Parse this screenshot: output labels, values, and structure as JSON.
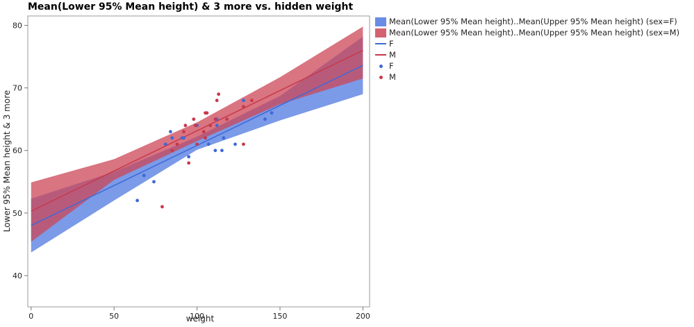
{
  "chart_data": {
    "type": "scatter",
    "title": "Mean(Lower 95% Mean height) & 3 more vs. hidden weight",
    "xlabel": "weight",
    "ylabel": "Lower 95% Mean height & 3 more",
    "xlim": [
      -2,
      204
    ],
    "ylim": [
      35,
      81.5
    ],
    "xticks": [
      0,
      50,
      100,
      150,
      200
    ],
    "yticks": [
      40,
      50,
      60,
      70,
      80
    ],
    "series": [
      {
        "name": "F",
        "color": "#3d69d6",
        "band_color": "#4f78e0",
        "fit": {
          "x": [
            0,
            200
          ],
          "y": [
            48,
            73.6
          ]
        },
        "band": {
          "x": [
            0,
            50,
            100,
            150,
            200
          ],
          "lower": [
            43.7,
            52.0,
            60.1,
            64.8,
            69.0
          ],
          "upper": [
            52.3,
            56.6,
            62.2,
            68.7,
            78.2
          ]
        },
        "points": [
          [
            64,
            52
          ],
          [
            68,
            56
          ],
          [
            74,
            55
          ],
          [
            81,
            61
          ],
          [
            84,
            63
          ],
          [
            85,
            62
          ],
          [
            91,
            62
          ],
          [
            92,
            62
          ],
          [
            95,
            59
          ],
          [
            100,
            64
          ],
          [
            105,
            62
          ],
          [
            107,
            61
          ],
          [
            111,
            60
          ],
          [
            112,
            64
          ],
          [
            112,
            65
          ],
          [
            115,
            60
          ],
          [
            116,
            62
          ],
          [
            123,
            61
          ],
          [
            128,
            68
          ],
          [
            141,
            65
          ],
          [
            145,
            66
          ]
        ]
      },
      {
        "name": "M",
        "color": "#c8384a",
        "band_color": "#cc4657",
        "fit": {
          "x": [
            0,
            200
          ],
          "y": [
            50.3,
            76
          ]
        },
        "band": {
          "x": [
            0,
            50,
            100,
            150,
            200
          ],
          "lower": [
            45.4,
            55.3,
            61.5,
            67.4,
            71.5
          ],
          "upper": [
            54.9,
            58.6,
            64.5,
            71.7,
            79.8
          ]
        },
        "points": [
          [
            79,
            51
          ],
          [
            85,
            60
          ],
          [
            88,
            61
          ],
          [
            92,
            63
          ],
          [
            93,
            64
          ],
          [
            95,
            58
          ],
          [
            98,
            65
          ],
          [
            99,
            64
          ],
          [
            100,
            61
          ],
          [
            104,
            63
          ],
          [
            105,
            66
          ],
          [
            105,
            62
          ],
          [
            106,
            66
          ],
          [
            108,
            64
          ],
          [
            111,
            65
          ],
          [
            112,
            68
          ],
          [
            113,
            69
          ],
          [
            118,
            65
          ],
          [
            128,
            67
          ],
          [
            128,
            61
          ],
          [
            133,
            68
          ]
        ]
      }
    ],
    "legend": [
      {
        "kind": "band",
        "label": "Mean(Lower 95% Mean height)..Mean(Upper 95% Mean height) (sex=F)",
        "color": "#4f78e0"
      },
      {
        "kind": "band",
        "label": "Mean(Lower 95% Mean height)..Mean(Upper 95% Mean height) (sex=M)",
        "color": "#cc4657"
      },
      {
        "kind": "line",
        "label": "F",
        "color": "#3d69d6"
      },
      {
        "kind": "line",
        "label": "M",
        "color": "#c8384a"
      },
      {
        "kind": "dot",
        "label": "F",
        "color": "#3d69d6"
      },
      {
        "kind": "dot",
        "label": "M",
        "color": "#c8384a"
      }
    ],
    "legend_position": "right"
  }
}
